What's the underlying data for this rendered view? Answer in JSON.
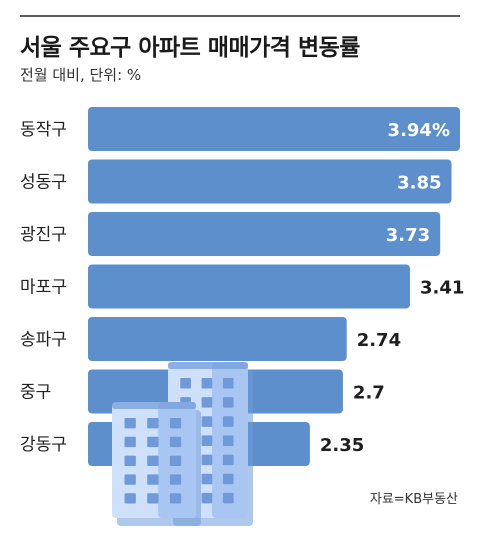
{
  "title": "서울 주요구 아파트 매매가격 변동률",
  "subtitle": "전월 대비, 단위: %",
  "source": "자료=KB부동산",
  "colors": {
    "bar": "#5c8fcc",
    "building_light": "#cfe0fa",
    "building_mid": "#a9c6f2",
    "building_dark": "#6f9ad9"
  },
  "chart_data": {
    "type": "bar",
    "orientation": "horizontal",
    "categories": [
      "동작구",
      "성동구",
      "광진구",
      "마포구",
      "송파구",
      "중구",
      "강동구"
    ],
    "values": [
      3.94,
      3.85,
      3.73,
      3.41,
      2.74,
      2.7,
      2.35
    ],
    "value_labels": [
      "3.94%",
      "3.85",
      "3.73",
      "3.41",
      "2.74",
      "2.7",
      "2.35"
    ],
    "title": "서울 주요구 아파트 매매가격 변동률",
    "xlim": [
      0,
      3.94
    ],
    "grid": false,
    "legend": "none"
  }
}
